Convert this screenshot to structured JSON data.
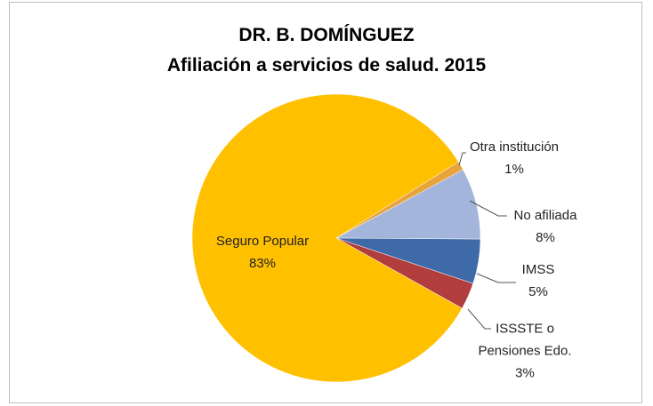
{
  "chart_data": {
    "type": "pie",
    "title": "DR. B. DOMÍNGUEZ",
    "subtitle": "Afiliación a servicios de salud. 2015",
    "categories": [
      "Otra institución",
      "No afiliada",
      "IMSS",
      "ISSSTE o Pensiones Edo.",
      "Seguro Popular"
    ],
    "values": [
      1,
      8,
      5,
      3,
      83
    ],
    "value_labels": [
      "1%",
      "8%",
      "5%",
      "3%",
      "83%"
    ],
    "colors": [
      "#e8a33a",
      "#a3b5db",
      "#3f6aa8",
      "#b13d3d",
      "#ffc000"
    ]
  }
}
